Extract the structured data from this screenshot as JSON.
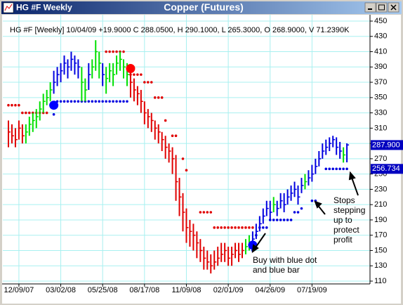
{
  "chart_data": {
    "type": "ohlc",
    "window_title": "HG #F Weekly",
    "title": "Copper (Futures)",
    "info": "HG #F [Weekly] 10/04/09 +19.9000 C 288.0500, H 290.1000, L 265.3000, O 268.9000, V 71.2390K",
    "high": [
      320,
      315,
      310,
      320,
      315,
      315,
      325,
      330,
      335,
      345,
      355,
      360,
      370,
      385,
      390,
      395,
      405,
      400,
      410,
      405,
      400,
      390,
      375,
      395,
      400,
      425,
      410,
      395,
      390,
      395,
      395,
      405,
      410,
      400,
      395,
      385,
      375,
      365,
      360,
      345,
      335,
      330,
      320,
      315,
      305,
      300,
      290,
      285,
      275,
      245,
      225,
      205,
      190,
      185,
      175,
      165,
      155,
      150,
      145,
      150,
      155,
      160,
      160,
      155,
      155,
      160,
      160,
      160,
      165,
      170,
      175,
      185,
      195,
      205,
      215,
      215,
      220,
      215,
      225,
      225,
      230,
      235,
      240,
      235,
      245,
      250,
      255,
      262,
      270,
      280,
      290,
      295,
      298,
      300,
      298,
      292,
      285,
      290.1
    ],
    "low": [
      285,
      290,
      285,
      295,
      290,
      290,
      300,
      305,
      310,
      320,
      330,
      340,
      345,
      355,
      365,
      370,
      380,
      375,
      385,
      380,
      375,
      345,
      345,
      360,
      375,
      385,
      375,
      365,
      355,
      370,
      365,
      380,
      385,
      375,
      365,
      350,
      345,
      340,
      330,
      315,
      310,
      305,
      295,
      290,
      280,
      270,
      265,
      250,
      215,
      195,
      175,
      160,
      155,
      150,
      140,
      135,
      125,
      125,
      120,
      125,
      130,
      135,
      135,
      130,
      130,
      140,
      135,
      140,
      145,
      150,
      155,
      165,
      175,
      185,
      195,
      190,
      200,
      195,
      205,
      200,
      210,
      215,
      220,
      210,
      225,
      230,
      235,
      240,
      250,
      260,
      270,
      275,
      280,
      285,
      275,
      270,
      265,
      265.3
    ],
    "close": [
      305,
      300,
      295,
      310,
      300,
      305,
      315,
      320,
      325,
      335,
      345,
      350,
      360,
      370,
      380,
      385,
      395,
      390,
      400,
      395,
      390,
      370,
      360,
      380,
      390,
      410,
      395,
      380,
      375,
      385,
      380,
      395,
      400,
      390,
      380,
      370,
      360,
      355,
      345,
      330,
      325,
      320,
      310,
      305,
      295,
      285,
      280,
      270,
      240,
      220,
      200,
      180,
      175,
      170,
      160,
      150,
      140,
      135,
      130,
      135,
      140,
      145,
      150,
      140,
      145,
      150,
      145,
      150,
      155,
      160,
      165,
      175,
      185,
      195,
      205,
      200,
      210,
      205,
      215,
      210,
      220,
      225,
      230,
      220,
      235,
      240,
      245,
      250,
      260,
      270,
      280,
      285,
      290,
      295,
      285,
      280,
      275,
      288.05
    ],
    "bar_colors": [
      "#e00000",
      "#e00000",
      "#e00000",
      "#e00000",
      "#e00000",
      "#00e000",
      "#00e000",
      "#00e000",
      "#00e000",
      "#00e000",
      "#00e000",
      "#00e000",
      "#00e000",
      "#0000e0",
      "#0000e0",
      "#0000e0",
      "#0000e0",
      "#0000e0",
      "#0000e0",
      "#0000e0",
      "#0000e0",
      "#00e000",
      "#00e000",
      "#0000e0",
      "#00e000",
      "#00e000",
      "#00e000",
      "#0000e0",
      "#00e000",
      "#00e000",
      "#00e000",
      "#00e000",
      "#00e000",
      "#00e000",
      "#00e000",
      "#e00000",
      "#e00000",
      "#e00000",
      "#e00000",
      "#e00000",
      "#e00000",
      "#e00000",
      "#e00000",
      "#e00000",
      "#e00000",
      "#e00000",
      "#e00000",
      "#e00000",
      "#e00000",
      "#e00000",
      "#e00000",
      "#e00000",
      "#e00000",
      "#e00000",
      "#e00000",
      "#e00000",
      "#e00000",
      "#e00000",
      "#e00000",
      "#e00000",
      "#e00000",
      "#e00000",
      "#e00000",
      "#e00000",
      "#e00000",
      "#e00000",
      "#e00000",
      "#e00000",
      "#00e000",
      "#00e000",
      "#0000e0",
      "#0000e0",
      "#0000e0",
      "#0000e0",
      "#0000e0",
      "#0000e0",
      "#00e000",
      "#0000e0",
      "#0000e0",
      "#0000e0",
      "#0000e0",
      "#0000e0",
      "#0000e0",
      "#0000e0",
      "#0000e0",
      "#00e000",
      "#0000e0",
      "#0000e0",
      "#0000e0",
      "#0000e0",
      "#0000e0",
      "#0000e0",
      "#0000e0",
      "#0000e0",
      "#0000e0",
      "#0000e0",
      "#00e000",
      "#0000e0"
    ],
    "upper_stops": {
      "color": "#e00000",
      "values": [
        340,
        340,
        340,
        340,
        330,
        330,
        330,
        330,
        330,
        330,
        330,
        330,
        null,
        null,
        null,
        null,
        null,
        null,
        null,
        null,
        null,
        null,
        null,
        null,
        null,
        null,
        null,
        null,
        410,
        410,
        410,
        410,
        410,
        410,
        null,
        380,
        380,
        380,
        380,
        370,
        370,
        370,
        350,
        350,
        350,
        320,
        null,
        300,
        300,
        null,
        270,
        255,
        null,
        null,
        null,
        200,
        200,
        200,
        200,
        180,
        180,
        180,
        180,
        180,
        180,
        180,
        180,
        180,
        180,
        180,
        180,
        null,
        null,
        null,
        null,
        null,
        null,
        null,
        null,
        null,
        null,
        null,
        null,
        null,
        null,
        null,
        null,
        null,
        null,
        null,
        null,
        null,
        null,
        null,
        null,
        null,
        null,
        null
      ]
    },
    "lower_stops": {
      "color": "#0000e0",
      "values": [
        null,
        null,
        null,
        null,
        null,
        null,
        null,
        null,
        null,
        null,
        null,
        null,
        null,
        328,
        345,
        345,
        345,
        345,
        345,
        345,
        345,
        345,
        345,
        345,
        345,
        345,
        345,
        345,
        345,
        345,
        345,
        345,
        345,
        345,
        345,
        null,
        null,
        null,
        null,
        null,
        null,
        null,
        null,
        null,
        null,
        null,
        null,
        null,
        null,
        null,
        null,
        null,
        null,
        null,
        null,
        null,
        null,
        null,
        null,
        null,
        null,
        null,
        null,
        null,
        null,
        null,
        null,
        null,
        null,
        null,
        150,
        170,
        180,
        180,
        180,
        190,
        190,
        190,
        190,
        190,
        190,
        190,
        200,
        200,
        205,
        null,
        null,
        215,
        215,
        null,
        null,
        256.734,
        256.734,
        256.734,
        256.734,
        256.734,
        256.734,
        256.734
      ]
    },
    "signals": [
      {
        "index": 13,
        "value": 340,
        "color": "#0000ff"
      },
      {
        "index": 35,
        "value": 388,
        "color": "#ff0000"
      },
      {
        "index": 70,
        "value": 157,
        "color": "#0000ff"
      }
    ],
    "price_markers": [
      {
        "value": 287.9,
        "label": "287.900"
      },
      {
        "value": 256.734,
        "label": "256.734"
      }
    ],
    "ylim": [
      110,
      450
    ],
    "yticks": [
      110,
      130,
      150,
      170,
      190,
      210,
      230,
      250,
      270,
      290,
      310,
      330,
      350,
      370,
      390,
      410,
      430,
      450
    ],
    "xticks": [
      {
        "value": 3,
        "label": "12/09/07"
      },
      {
        "value": 15,
        "label": "03/02/08"
      },
      {
        "value": 27,
        "label": "05/25/08"
      },
      {
        "value": 39,
        "label": "08/17/08"
      },
      {
        "value": 51,
        "label": "11/09/08"
      },
      {
        "value": 63,
        "label": "02/01/09"
      },
      {
        "value": 75,
        "label": "04/26/09"
      },
      {
        "value": 87,
        "label": "07/19/09"
      }
    ],
    "grid": true,
    "annotations": [
      {
        "lines": [
          "Buy with blue dot",
          "and blue bar"
        ]
      },
      {
        "lines": [
          "Stops",
          "stepping",
          "up to",
          "protect",
          "profit"
        ]
      }
    ]
  }
}
